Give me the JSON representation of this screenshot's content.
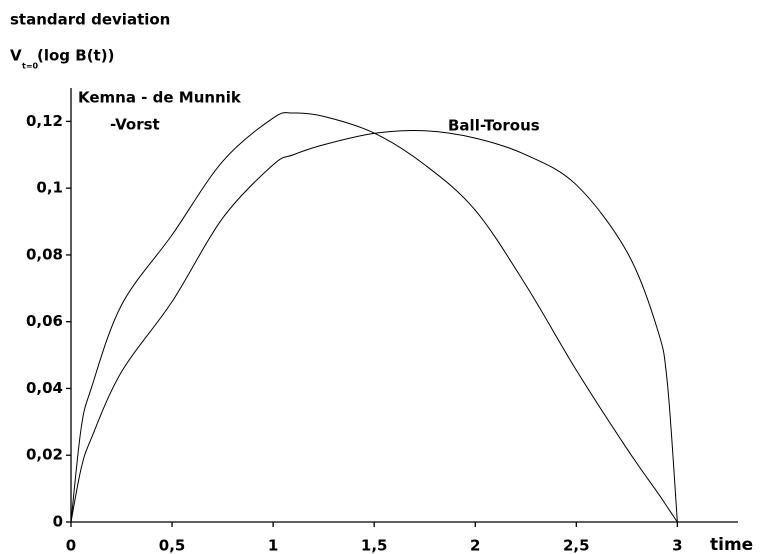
{
  "chart_data": {
    "type": "line",
    "title": "standard deviation",
    "ylabel": {
      "main": "V",
      "subscript": "t=0",
      "rest": "(log B(t))"
    },
    "xlabel": "time",
    "x": [
      0,
      0.05,
      0.1,
      0.25,
      0.5,
      0.75,
      1,
      1.1,
      1.25,
      1.5,
      1.75,
      2,
      2.25,
      2.5,
      2.75,
      2.9,
      2.95,
      3
    ],
    "series": [
      {
        "label_lines": [
          "Kemna - de Munnik",
          "-Vorst"
        ],
        "color": "#000000",
        "values": [
          0,
          0.028,
          0.04,
          0.065,
          0.086,
          0.108,
          0.121,
          0.1225,
          0.1215,
          0.1165,
          0.107,
          0.0934,
          0.071,
          0.0455,
          0.022,
          0.009,
          0.0045,
          0
        ]
      },
      {
        "label_lines": [
          "Ball-Torous"
        ],
        "color": "#000000",
        "values": [
          0,
          0.016,
          0.025,
          0.045,
          0.066,
          0.091,
          0.107,
          0.11,
          0.113,
          0.1164,
          0.1172,
          0.115,
          0.11,
          0.101,
          0.081,
          0.058,
          0.042,
          0
        ]
      }
    ],
    "xlim": [
      0,
      3.3
    ],
    "ylim": [
      0,
      0.13
    ],
    "xticks": [
      0,
      {
        "value": 0.5,
        "label": "0,5"
      },
      1,
      {
        "value": 1.5,
        "label": "1,5"
      },
      2,
      {
        "value": 2.5,
        "label": "2,5"
      },
      3
    ],
    "yticks": [
      0,
      {
        "value": 0.02,
        "label": "0,02"
      },
      {
        "value": 0.04,
        "label": "0,04"
      },
      {
        "value": 0.06,
        "label": "0,06"
      },
      {
        "value": 0.08,
        "label": "0,08"
      },
      {
        "value": 0.1,
        "label": "0,1"
      },
      {
        "value": 0.12,
        "label": "0,12"
      }
    ],
    "grid": false
  }
}
